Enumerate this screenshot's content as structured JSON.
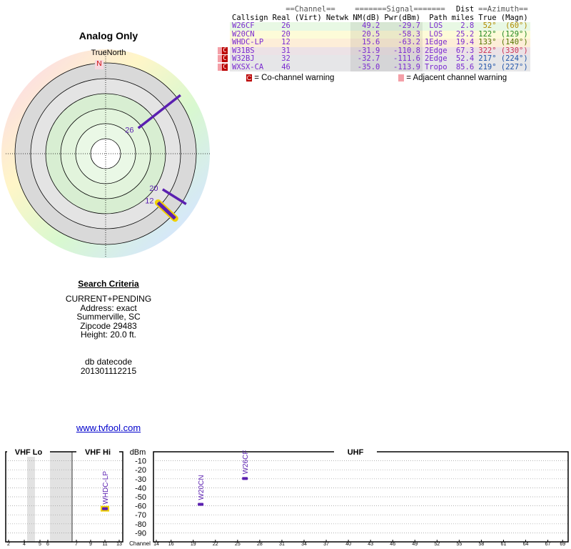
{
  "header": {
    "title": "Analog Only"
  },
  "polar": {
    "north_label": "TrueNorth",
    "north": "N",
    "rays": [
      {
        "channel": "26",
        "azimuth": 52,
        "nm": 49.2,
        "color": "#5a1fb0"
      },
      {
        "channel": "20",
        "azimuth": 122,
        "nm": 20.5,
        "color": "#5a1fb0"
      },
      {
        "channel": "12",
        "azimuth": 133,
        "nm": 15.6,
        "color": "#5a1fb0",
        "outline": "#f0d000"
      }
    ]
  },
  "table": {
    "group_headers": [
      "==Channel==",
      "=======Signal=======",
      "Dist",
      "==Azimuth=="
    ],
    "columns": [
      "Callsign",
      "Real",
      "(Virt)",
      "Netwk",
      "NM(dB)",
      "Pwr(dBm)",
      "Path",
      "miles",
      "True",
      "(Magn)"
    ],
    "rows": [
      {
        "bg": "#e8f8e4",
        "az_color": "#b08a00",
        "cells": [
          "W26CF",
          "26",
          "49.2",
          "-29.7",
          "LOS",
          "2.8",
          "52°",
          "(60°)"
        ]
      },
      {
        "bg": "#fdfbd8",
        "az_color": "#228822",
        "cells": [
          "W20CN",
          "20",
          "20.5",
          "-58.3",
          "LOS",
          "25.2",
          "122°",
          "(129°)"
        ]
      },
      {
        "bg": "#fdeed8",
        "az_color": "#557700",
        "cells": [
          "WHDC-LP",
          "12",
          "15.6",
          "-63.2",
          "1Edge",
          "19.4",
          "133°",
          "(140°)"
        ]
      },
      {
        "bg": "#ece2e6",
        "az_color": "#cc3355",
        "warning": "C",
        "cells": [
          "W31BS",
          "31",
          "-31.9",
          "-110.8",
          "2Edge",
          "67.3",
          "322°",
          "(330°)"
        ]
      },
      {
        "bg": "#e6e6e8",
        "az_color": "#2255aa",
        "warning": "C",
        "cells": [
          "W32BJ",
          "32",
          "-32.7",
          "-111.6",
          "2Edge",
          "52.4",
          "217°",
          "(224°)"
        ]
      },
      {
        "bg": "#e6e6e8",
        "az_color": "#2255aa",
        "warning": "C",
        "cells": [
          "WXSX-CA",
          "46",
          "-35.0",
          "-113.9",
          "Tropo",
          "85.6",
          "219°",
          "(227°)"
        ]
      }
    ]
  },
  "legend": {
    "co_icon": "C",
    "co_text": "= Co-channel warning",
    "adj_text": "= Adjacent channel warning"
  },
  "search": {
    "title": "Search Criteria",
    "lines": [
      "CURRENT+PENDING",
      "Address: exact",
      "Summerville, SC",
      "Zipcode 29483",
      "Height: 20.0 ft."
    ],
    "db_lines": [
      "db datecode",
      "201301112215"
    ]
  },
  "link": "www.tvfool.com",
  "spectrum": {
    "vhf_lo": "VHF Lo",
    "vhf_hi": "VHF Hi",
    "uhf": "UHF",
    "y_label": "dBm",
    "x_label": "Channel",
    "ylim": [
      -100,
      0
    ],
    "yticks": [
      -10,
      -20,
      -30,
      -40,
      -50,
      -60,
      -70,
      -80,
      -90
    ],
    "vhf_ticks": [
      2,
      4,
      5,
      6,
      7,
      9,
      11,
      13
    ],
    "uhf_ticks": [
      14,
      16,
      19,
      22,
      25,
      28,
      31,
      34,
      37,
      40,
      43,
      46,
      49,
      52,
      55,
      58,
      61,
      64,
      67,
      69
    ],
    "stations": [
      {
        "name": "WHDC-LP",
        "channel": 12,
        "dbm": -63.2,
        "color": "#5a1fb0",
        "outline": "#f0d000"
      },
      {
        "name": "W20CN",
        "channel": 20,
        "dbm": -58.3,
        "color": "#5a1fb0"
      },
      {
        "name": "W26CF",
        "channel": 26,
        "dbm": -29.7,
        "color": "#5a1fb0"
      }
    ]
  }
}
